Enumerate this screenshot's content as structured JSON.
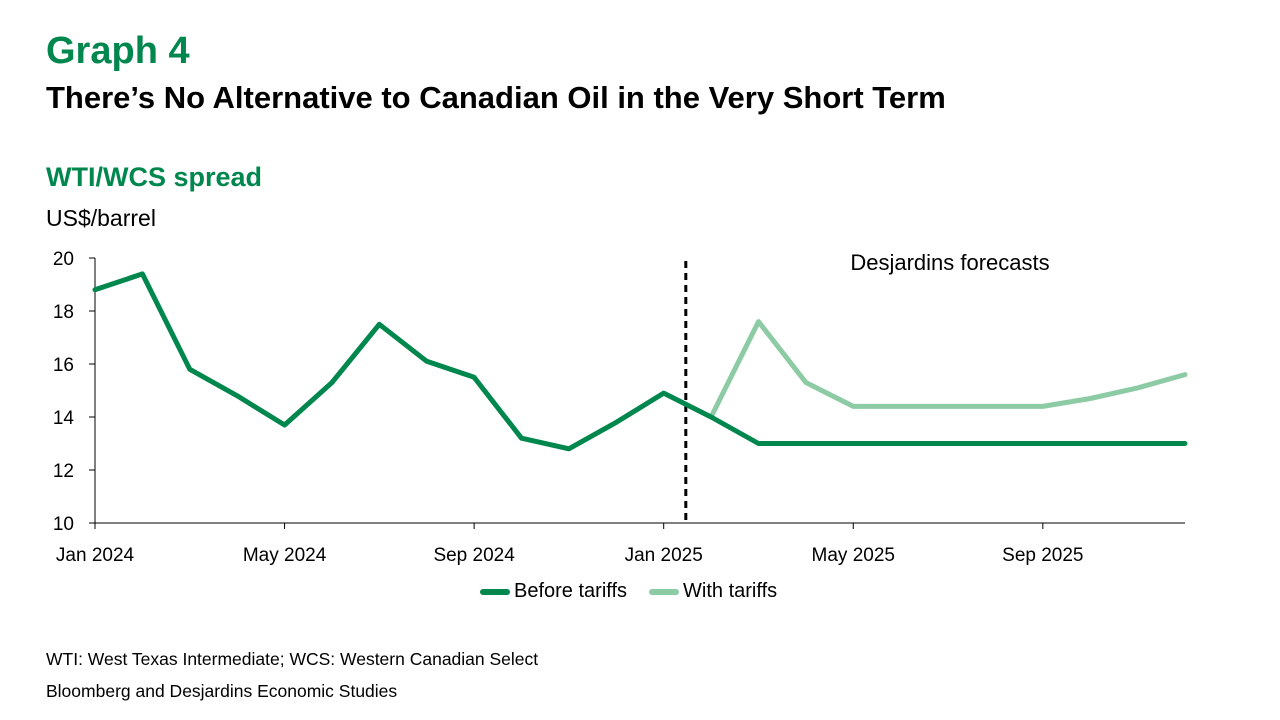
{
  "header": {
    "label": "Graph 4",
    "title": "There’s No Alternative to Canadian Oil in the Very Short Term"
  },
  "chart_data": {
    "type": "line",
    "title": "WTI/WCS spread",
    "ylabel": "US$/barrel",
    "ylim": [
      10,
      20
    ],
    "yticks": [
      10,
      12,
      14,
      16,
      18,
      20
    ],
    "xlim": [
      "2024-01",
      "2025-12"
    ],
    "xticks": [
      {
        "value": "2024-01",
        "label": "Jan 2024"
      },
      {
        "value": "2024-05",
        "label": "May 2024"
      },
      {
        "value": "2024-09",
        "label": "Sep 2024"
      },
      {
        "value": "2025-01",
        "label": "Jan 2025"
      },
      {
        "value": "2025-05",
        "label": "May 2025"
      },
      {
        "value": "2025-09",
        "label": "Sep 2025"
      }
    ],
    "forecast_line": {
      "x": "2025-01-15",
      "label": "Desjardins forecasts"
    },
    "series": [
      {
        "name": "Before tariffs",
        "color": "#00874E",
        "points": [
          [
            "2024-01",
            18.8
          ],
          [
            "2024-02",
            19.4
          ],
          [
            "2024-03",
            15.8
          ],
          [
            "2024-04",
            14.8
          ],
          [
            "2024-05",
            13.7
          ],
          [
            "2024-06",
            15.3
          ],
          [
            "2024-07",
            17.5
          ],
          [
            "2024-08",
            16.1
          ],
          [
            "2024-09",
            15.5
          ],
          [
            "2024-10",
            13.2
          ],
          [
            "2024-11",
            12.8
          ],
          [
            "2024-12",
            13.8
          ],
          [
            "2025-01",
            14.9
          ],
          [
            "2025-02",
            14.0
          ],
          [
            "2025-03",
            13.0
          ],
          [
            "2025-04",
            13.0
          ],
          [
            "2025-05",
            13.0
          ],
          [
            "2025-06",
            13.0
          ],
          [
            "2025-07",
            13.0
          ],
          [
            "2025-08",
            13.0
          ],
          [
            "2025-09",
            13.0
          ],
          [
            "2025-10",
            13.0
          ],
          [
            "2025-11",
            13.0
          ],
          [
            "2025-12",
            13.0
          ]
        ]
      },
      {
        "name": "With tariffs",
        "color": "#8DCBA5",
        "points": [
          [
            "2025-02",
            14.0
          ],
          [
            "2025-03",
            17.6
          ],
          [
            "2025-04",
            15.3
          ],
          [
            "2025-05",
            14.4
          ],
          [
            "2025-06",
            14.4
          ],
          [
            "2025-07",
            14.4
          ],
          [
            "2025-08",
            14.4
          ],
          [
            "2025-09",
            14.4
          ],
          [
            "2025-10",
            14.7
          ],
          [
            "2025-11",
            15.1
          ],
          [
            "2025-12",
            15.6
          ]
        ]
      }
    ]
  },
  "notes": {
    "definitions": "WTI: West Texas Intermediate; WCS: Western Canadian Select",
    "source": "Bloomberg and Desjardins Economic Studies"
  }
}
